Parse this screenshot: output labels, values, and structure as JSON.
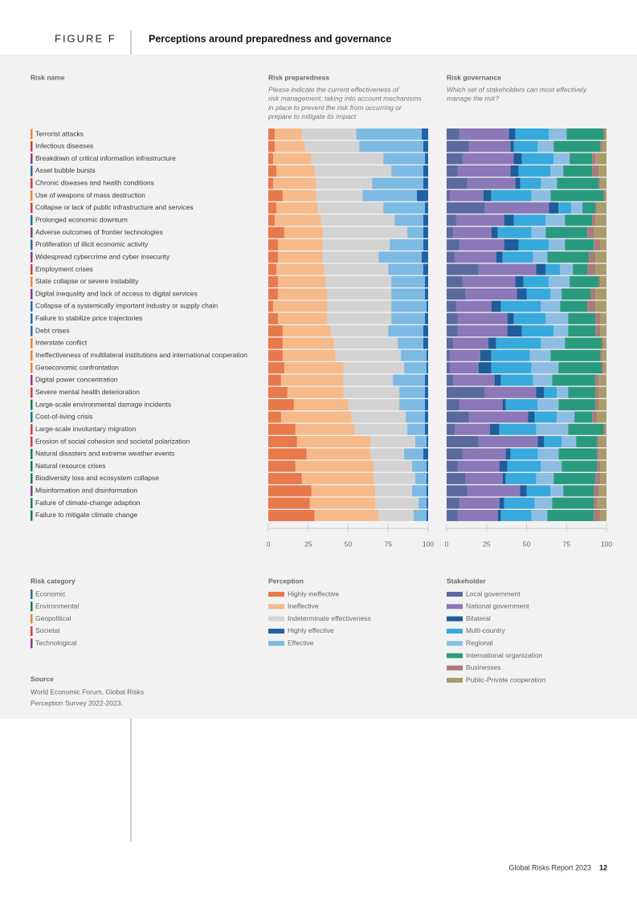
{
  "figure_label": "FIGURE F",
  "title": "Perceptions around preparedness and governance",
  "risk_name_header": "Risk name",
  "risk_category": {
    "title": "Risk category",
    "items": [
      {
        "name": "Economic",
        "color": "#2a6ea6"
      },
      {
        "name": "Environmental",
        "color": "#1e7a58"
      },
      {
        "name": "Geopolitical",
        "color": "#e8883c"
      },
      {
        "name": "Societal",
        "color": "#d4403a"
      },
      {
        "name": "Technological",
        "color": "#8a3990"
      }
    ],
    "rows": [
      "Geopolitical",
      "Societal",
      "Technological",
      "Economic",
      "Societal",
      "Geopolitical",
      "Societal",
      "Economic",
      "Technological",
      "Economic",
      "Technological",
      "Societal",
      "Geopolitical",
      "Technological",
      "Economic",
      "Economic",
      "Economic",
      "Geopolitical",
      "Geopolitical",
      "Geopolitical",
      "Technological",
      "Societal",
      "Environmental",
      "Economic",
      "Societal",
      "Societal",
      "Environmental",
      "Environmental",
      "Environmental",
      "Technological",
      "Environmental",
      "Environmental"
    ]
  },
  "chart_data": [
    {
      "type": "bar",
      "orientation": "horizontal",
      "stacked": true,
      "title": "Risk preparedness",
      "subtitle": [
        "Please indicate the current effectiveness of",
        "risk management, taking into account mechanisms",
        "in place to prevent the risk from occurring or",
        "prepare to mitigate its impact"
      ],
      "legend_title": "Perception",
      "categories": [
        "Terrorist attacks",
        "Infectious diseases",
        "Breakdown of critical information infrastructure",
        "Asset bubble bursts",
        "Chronic diseases and health conditions",
        "Use of weapons of mass destruction",
        "Collapse or lack of public infrastructure and services",
        "Prolonged economic downturn",
        "Adverse outcomes of frontier technologies",
        "Proliferation of illicit economic activity",
        "Widespread cybercrime and cyber insecurity",
        "Employment crises",
        "State collapse or severe instability",
        "Digital inequality and lack of access to digital services",
        "Collapse of a systemically important industry or supply chain",
        "Failure to stabilize price trajectories",
        "Debt crises",
        "Interstate conflict",
        "Ineffectiveness of multilateral institutions and international cooperation",
        "Geoeconomic confrontation",
        "Digital power concentration",
        "Severe mental health deterioration",
        "Large-scale environmental damage incidents",
        "Cost-of-living crisis",
        "Large-scale involuntary migration",
        "Erosion of social cohesion and societal polarization",
        "Natural disasters and extreme weather events",
        "Natural resource crises",
        "Biodiversity loss and ecosystem collapse",
        "Misinformation and disinformation",
        "Failure of climate-change adaption",
        "Failure to mitigate climate change"
      ],
      "series": [
        {
          "name": "Highly ineffective",
          "color": "#e8794a",
          "values": [
            4,
            4,
            3,
            5,
            3,
            9,
            5,
            4,
            10,
            6,
            6,
            5,
            6,
            6,
            3,
            6,
            9,
            9,
            9,
            10,
            8,
            12,
            16,
            8,
            17,
            18,
            24,
            17,
            21,
            27,
            26,
            29
          ]
        },
        {
          "name": "Ineffective",
          "color": "#f5b98a",
          "values": [
            17,
            19,
            24,
            24,
            27,
            21,
            26,
            29,
            24,
            28,
            28,
            30,
            30,
            31,
            34,
            31,
            30,
            32,
            33,
            37,
            39,
            35,
            34,
            44,
            37,
            46,
            40,
            49,
            45,
            40,
            41,
            40
          ]
        },
        {
          "name": "Indeterminate effectiveness",
          "color": "#d3d3d3",
          "values": [
            34,
            34,
            45,
            48,
            35,
            29,
            41,
            46,
            53,
            42,
            35,
            40,
            41,
            40,
            40,
            40,
            36,
            40,
            41,
            38,
            31,
            35,
            32,
            34,
            33,
            28,
            21,
            24,
            26,
            23,
            27,
            22
          ]
        },
        {
          "name": "Highly effective",
          "color": "#1f62a5",
          "values": [
            4,
            3,
            2,
            3,
            3,
            7,
            2,
            3,
            3,
            3,
            4,
            3,
            2,
            2,
            1,
            2,
            3,
            3,
            1,
            1,
            2,
            2,
            2,
            2,
            2,
            1,
            3,
            1,
            1,
            1,
            1,
            1
          ]
        },
        {
          "name": "Effective",
          "color": "#7cb9e3",
          "values": [
            41,
            40,
            26,
            20,
            32,
            34,
            26,
            18,
            10,
            21,
            27,
            22,
            21,
            21,
            22,
            21,
            22,
            16,
            16,
            14,
            20,
            16,
            16,
            12,
            11,
            7,
            12,
            9,
            7,
            9,
            5,
            8
          ]
        }
      ],
      "xlim": [
        0,
        100
      ],
      "xticks": [
        0,
        25,
        50,
        75,
        100
      ]
    },
    {
      "type": "bar",
      "orientation": "horizontal",
      "stacked": true,
      "title": "Risk governance",
      "subtitle": [
        "Which set of stakeholders can most effectively",
        "manage the risk?"
      ],
      "legend_title": "Stakeholder",
      "series": [
        {
          "name": "Local government",
          "color": "#5b6a9e",
          "values": [
            8,
            14,
            10,
            7,
            13,
            2,
            24,
            6,
            4,
            8,
            5,
            20,
            10,
            12,
            6,
            7,
            7,
            4,
            2,
            2,
            4,
            24,
            8,
            14,
            5,
            20,
            10,
            7,
            12,
            13,
            8,
            7
          ]
        },
        {
          "name": "National government",
          "color": "#8a78b8",
          "values": [
            31,
            26,
            32,
            33,
            30,
            21,
            40,
            30,
            24,
            28,
            26,
            36,
            33,
            32,
            22,
            31,
            31,
            22,
            19,
            18,
            26,
            32,
            27,
            37,
            22,
            37,
            27,
            26,
            23,
            33,
            25,
            25
          ]
        },
        {
          "name": "Bilateral",
          "color": "#1e5c9a",
          "values": [
            4,
            2,
            5,
            5,
            3,
            5,
            6,
            6,
            4,
            9,
            4,
            6,
            5,
            6,
            6,
            4,
            9,
            5,
            7,
            8,
            4,
            5,
            2,
            4,
            6,
            4,
            3,
            5,
            2,
            4,
            3,
            2
          ]
        },
        {
          "name": "Multi-country",
          "color": "#38a9dc",
          "values": [
            21,
            15,
            20,
            20,
            13,
            25,
            8,
            20,
            21,
            19,
            19,
            9,
            16,
            15,
            25,
            20,
            20,
            28,
            24,
            25,
            20,
            8,
            20,
            14,
            23,
            11,
            17,
            21,
            19,
            15,
            19,
            19
          ]
        },
        {
          "name": "Regional",
          "color": "#8dbde3",
          "values": [
            11,
            10,
            10,
            8,
            10,
            12,
            7,
            12,
            9,
            10,
            9,
            8,
            13,
            7,
            12,
            14,
            9,
            15,
            13,
            17,
            12,
            7,
            13,
            11,
            20,
            9,
            13,
            13,
            11,
            8,
            11,
            10
          ]
        },
        {
          "name": "International organization",
          "color": "#2a9a7e",
          "values": [
            23,
            29,
            14,
            18,
            26,
            33,
            8,
            17,
            26,
            18,
            26,
            9,
            18,
            18,
            17,
            17,
            17,
            23,
            31,
            27,
            27,
            17,
            23,
            11,
            22,
            13,
            24,
            22,
            26,
            19,
            26,
            29
          ]
        },
        {
          "name": "Businesses",
          "color": "#a97b7b",
          "values": [
            1,
            1,
            2,
            4,
            1,
            1,
            1,
            2,
            4,
            4,
            4,
            5,
            1,
            3,
            5,
            3,
            3,
            1,
            1,
            1,
            2,
            2,
            2,
            3,
            1,
            1,
            1,
            2,
            3,
            3,
            2,
            4
          ]
        },
        {
          "name": "Public-Private cooperation",
          "color": "#a99b6a",
          "values": [
            1,
            3,
            7,
            5,
            4,
            1,
            6,
            7,
            8,
            4,
            7,
            7,
            4,
            7,
            7,
            4,
            4,
            2,
            3,
            2,
            5,
            5,
            5,
            6,
            1,
            5,
            5,
            4,
            4,
            5,
            6,
            4
          ]
        }
      ],
      "xlim": [
        0,
        100
      ],
      "xticks": [
        0,
        25,
        50,
        75,
        100
      ]
    }
  ],
  "source_title": "Source",
  "source_text": [
    "World Economic Forum, Global Risks",
    "Perception Survey 2022-2023."
  ],
  "footer_report": "Global Risks Report 2023",
  "footer_page": "12"
}
